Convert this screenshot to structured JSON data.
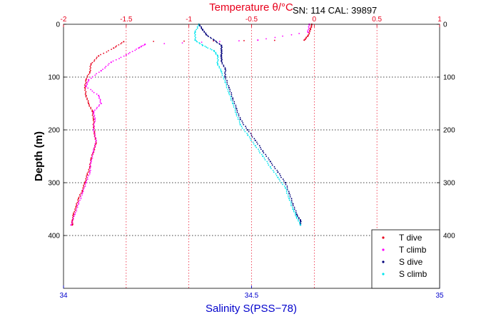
{
  "chart_data": {
    "type": "scatter",
    "title": "",
    "header_text": "SN: 114  CAL: 39897",
    "top_axis": {
      "label": "Temperature θ/°C",
      "ticks": [
        "-2",
        "-1.5",
        "-1",
        "-0.5",
        "0",
        "0.5",
        "1"
      ],
      "range": [
        -2,
        1
      ],
      "color": "#e8001c"
    },
    "bottom_axis": {
      "label": "Salinity S(PSS−78)",
      "ticks": [
        "34",
        "34.5",
        "35"
      ],
      "range": [
        34,
        35
      ],
      "color": "#0000cc"
    },
    "y_axis": {
      "label": "Depth (m)",
      "ticks": [
        "0",
        "100",
        "200",
        "300",
        "400"
      ],
      "range": [
        0,
        500
      ],
      "inverted": true
    },
    "grid": true,
    "legend_position": "bottom-right",
    "series": [
      {
        "name": "T dive",
        "color": "#e8001c",
        "axis": "temperature",
        "points": [
          [
            -0.02,
            0
          ],
          [
            -0.03,
            10
          ],
          [
            -0.05,
            22
          ],
          [
            -0.08,
            30
          ],
          [
            -1.52,
            33
          ],
          [
            -1.6,
            45
          ],
          [
            -1.72,
            60
          ],
          [
            -1.78,
            75
          ],
          [
            -1.79,
            90
          ],
          [
            -1.82,
            105
          ],
          [
            -1.83,
            120
          ],
          [
            -1.82,
            135
          ],
          [
            -1.8,
            150
          ],
          [
            -1.77,
            165
          ],
          [
            -1.76,
            180
          ],
          [
            -1.76,
            195
          ],
          [
            -1.75,
            210
          ],
          [
            -1.74,
            225
          ],
          [
            -1.76,
            240
          ],
          [
            -1.78,
            255
          ],
          [
            -1.79,
            270
          ],
          [
            -1.81,
            285
          ],
          [
            -1.83,
            300
          ],
          [
            -1.85,
            315
          ],
          [
            -1.88,
            330
          ],
          [
            -1.9,
            345
          ],
          [
            -1.92,
            360
          ],
          [
            -1.93,
            372
          ],
          [
            -1.93,
            380
          ]
        ]
      },
      {
        "name": "T climb",
        "color": "#ff00ff",
        "axis": "temperature",
        "points": [
          [
            -0.04,
            0
          ],
          [
            -0.05,
            15
          ],
          [
            -0.45,
            30
          ],
          [
            -1.35,
            38
          ],
          [
            -1.4,
            45
          ],
          [
            -1.5,
            58
          ],
          [
            -1.62,
            72
          ],
          [
            -1.7,
            88
          ],
          [
            -1.8,
            105
          ],
          [
            -1.82,
            118
          ],
          [
            -1.72,
            135
          ],
          [
            -1.7,
            150
          ],
          [
            -1.76,
            165
          ],
          [
            -1.75,
            180
          ],
          [
            -1.76,
            200
          ],
          [
            -1.74,
            220
          ],
          [
            -1.76,
            240
          ],
          [
            -1.78,
            260
          ],
          [
            -1.79,
            280
          ],
          [
            -1.82,
            300
          ],
          [
            -1.85,
            320
          ],
          [
            -1.88,
            340
          ],
          [
            -1.91,
            360
          ],
          [
            -1.94,
            380
          ]
        ]
      },
      {
        "name": "S dive",
        "color": "#00007a",
        "axis": "salinity",
        "points": [
          [
            34.36,
            0
          ],
          [
            34.37,
            10
          ],
          [
            34.38,
            20
          ],
          [
            34.4,
            30
          ],
          [
            34.42,
            40
          ],
          [
            34.42,
            50
          ],
          [
            34.42,
            60
          ],
          [
            34.42,
            70
          ],
          [
            34.43,
            85
          ],
          [
            34.43,
            100
          ],
          [
            34.44,
            120
          ],
          [
            34.45,
            140
          ],
          [
            34.46,
            160
          ],
          [
            34.47,
            180
          ],
          [
            34.49,
            200
          ],
          [
            34.51,
            220
          ],
          [
            34.53,
            240
          ],
          [
            34.55,
            260
          ],
          [
            34.57,
            280
          ],
          [
            34.59,
            300
          ],
          [
            34.6,
            320
          ],
          [
            34.61,
            340
          ],
          [
            34.62,
            360
          ],
          [
            34.63,
            372
          ],
          [
            34.63,
            380
          ]
        ]
      },
      {
        "name": "S climb",
        "color": "#00e5ee",
        "axis": "salinity",
        "points": [
          [
            34.36,
            0
          ],
          [
            34.35,
            15
          ],
          [
            34.35,
            30
          ],
          [
            34.37,
            40
          ],
          [
            34.4,
            50
          ],
          [
            34.41,
            60
          ],
          [
            34.41,
            75
          ],
          [
            34.42,
            90
          ],
          [
            34.43,
            110
          ],
          [
            34.44,
            130
          ],
          [
            34.45,
            150
          ],
          [
            34.46,
            170
          ],
          [
            34.47,
            190
          ],
          [
            34.49,
            210
          ],
          [
            34.51,
            230
          ],
          [
            34.53,
            250
          ],
          [
            34.55,
            270
          ],
          [
            34.57,
            290
          ],
          [
            34.59,
            310
          ],
          [
            34.6,
            330
          ],
          [
            34.61,
            350
          ],
          [
            34.62,
            365
          ],
          [
            34.63,
            380
          ]
        ]
      }
    ]
  }
}
